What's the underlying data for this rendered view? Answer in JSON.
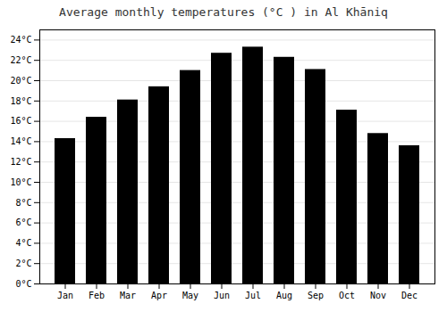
{
  "chart_data": {
    "type": "bar",
    "title": "Average monthly temperatures (°C ) in Al Khāniq",
    "categories": [
      "Jan",
      "Feb",
      "Mar",
      "Apr",
      "May",
      "Jun",
      "Jul",
      "Aug",
      "Sep",
      "Oct",
      "Nov",
      "Dec"
    ],
    "values": [
      14.3,
      16.4,
      18.1,
      19.4,
      21.0,
      22.7,
      23.3,
      22.3,
      21.1,
      17.1,
      14.8,
      13.6
    ],
    "ylim": [
      0,
      25
    ],
    "yticks": [
      {
        "value": 0,
        "label": "0°C"
      },
      {
        "value": 2,
        "label": "2°C"
      },
      {
        "value": 4,
        "label": "4°C"
      },
      {
        "value": 6,
        "label": "6°C"
      },
      {
        "value": 8,
        "label": "8°C"
      },
      {
        "value": 10,
        "label": "10°C"
      },
      {
        "value": 12,
        "label": "12°C"
      },
      {
        "value": 14,
        "label": "14°C"
      },
      {
        "value": 16,
        "label": "16°C"
      },
      {
        "value": 18,
        "label": "18°C"
      },
      {
        "value": 20,
        "label": "20°C"
      },
      {
        "value": 22,
        "label": "22°C"
      },
      {
        "value": 24,
        "label": "24°C"
      }
    ],
    "grid": true
  }
}
